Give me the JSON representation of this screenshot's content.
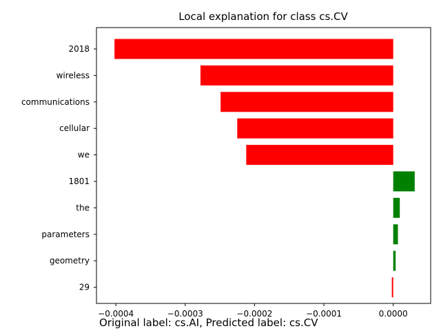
{
  "chart_data": {
    "type": "bar",
    "orientation": "horizontal",
    "title": "Local explanation for class cs.CV",
    "categories": [
      "2018",
      "wireless",
      "communications",
      "cellular",
      "we",
      "1801",
      "the",
      "parameters",
      "geometry",
      "29"
    ],
    "values": [
      -0.000402,
      -0.000278,
      -0.000249,
      -0.000225,
      -0.000212,
      3.1e-05,
      9.5e-06,
      6.8e-06,
      3.5e-06,
      -2e-06
    ],
    "xlim": [
      -0.000428,
      5.4e-05
    ],
    "xticks": [
      -0.0004,
      -0.0003,
      -0.0002,
      -0.0001,
      0.0
    ],
    "xtick_labels": [
      "−0.0004",
      "−0.0003",
      "−0.0002",
      "−0.0001",
      "0.0000"
    ],
    "grid": false,
    "colors": {
      "positive": "#008000",
      "negative": "#ff0000"
    }
  },
  "caption": "Original label: cs.AI, Predicted label: cs.CV"
}
